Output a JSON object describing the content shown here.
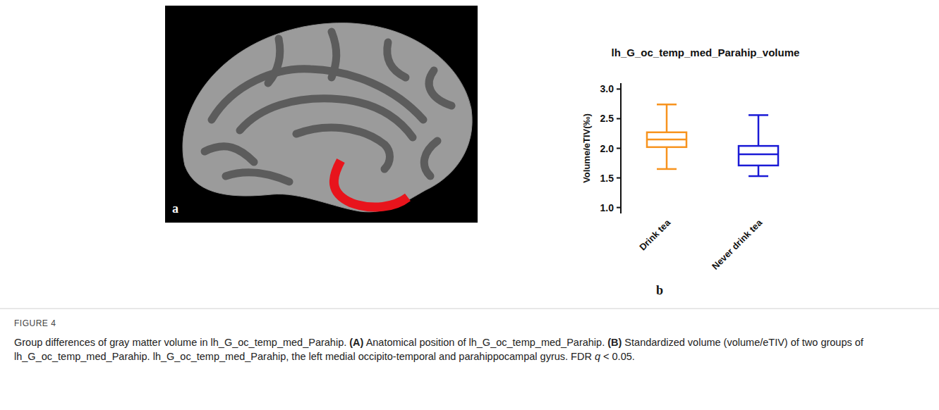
{
  "figure": {
    "panel_a_letter": "a",
    "panel_b_letter": "b",
    "label": "FIGURE 4",
    "caption": [
      {
        "text": "Group differences of gray matter volume in lh_G_oc_temp_med_Parahip. ",
        "style": "plain"
      },
      {
        "text": "(A)",
        "style": "bold"
      },
      {
        "text": " Anatomical position of lh_G_oc_temp_med_Parahip. ",
        "style": "plain"
      },
      {
        "text": "(B)",
        "style": "bold"
      },
      {
        "text": " Standardized volume (volume/eTIV) of two groups of lh_G_oc_temp_med_Parahip. lh_G_oc_temp_med_Parahip, the left medial occipito-temporal and parahippocampal gyrus. FDR ",
        "style": "plain"
      },
      {
        "text": "q",
        "style": "italic"
      },
      {
        "text": " < 0.05.",
        "style": "plain"
      }
    ]
  },
  "chart_data": {
    "type": "box",
    "title": "lh_G_oc_temp_med_Parahip_volume",
    "y_label": "Volume/eTIV(‰)",
    "categories": [
      "Drink tea",
      "Never drink tea"
    ],
    "min": [
      1.65,
      1.53
    ],
    "q1": [
      2.02,
      1.71
    ],
    "median": [
      2.15,
      1.9
    ],
    "q3": [
      2.27,
      2.04
    ],
    "max": [
      2.74,
      2.56
    ],
    "colors": [
      "#f7931e",
      "#1a1ad6"
    ],
    "ylim": [
      0.9,
      3.1
    ],
    "yticks": [
      {
        "value": 1,
        "label": "1.0"
      },
      {
        "value": 1.5,
        "label": "1.5"
      },
      {
        "value": 2,
        "label": "2.0"
      },
      {
        "value": 2.5,
        "label": "2.5"
      },
      {
        "value": 3,
        "label": "3.0"
      }
    ],
    "grid": false
  }
}
